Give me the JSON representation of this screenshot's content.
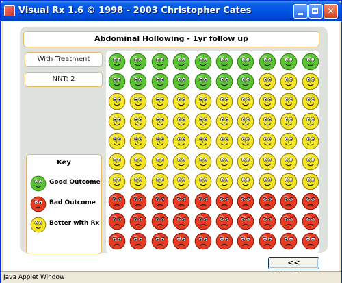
{
  "window": {
    "title": "Visual Rx 1.6 © 1998 - 2003 Christopher Cates",
    "status_bar": "Java Applet Window"
  },
  "header": {
    "title": "Abdominal Hollowing - 1yr follow up"
  },
  "info": {
    "treatment_label": "With Treatment",
    "nnt_label": "NNT: 2"
  },
  "key": {
    "title": "Key",
    "items": [
      {
        "label": "Good Outcome",
        "type": "good"
      },
      {
        "label": "Bad Outcome",
        "type": "bad"
      },
      {
        "label": "Better with Rx",
        "type": "better"
      }
    ]
  },
  "grid": {
    "columns": 10,
    "rows": 10,
    "counts": {
      "good": 17,
      "better": 53,
      "bad": 30
    }
  },
  "colors": {
    "good": "#5cc334",
    "better": "#f4e524",
    "bad": "#e83a22",
    "border_accent": "#e4b96a",
    "panel": "#dde3dc"
  },
  "nav": {
    "previous_label": "<< Previous"
  }
}
